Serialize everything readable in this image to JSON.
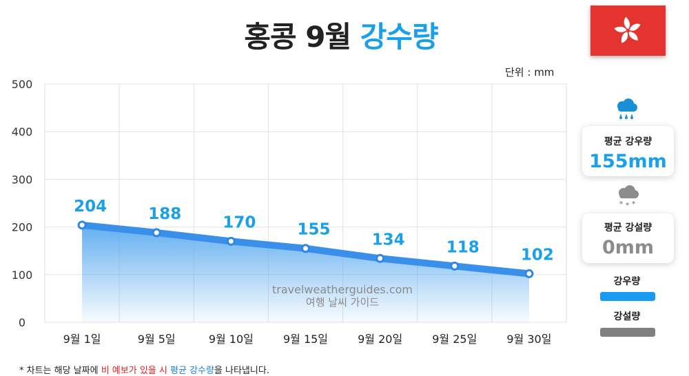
{
  "title": {
    "main": "홍콩 9월",
    "accent": "강수량"
  },
  "unit_label": "단위 : mm",
  "chart_data": {
    "type": "line",
    "title": "홍콩 9월 강수량",
    "categories": [
      "9월 1일",
      "9월 5일",
      "9월 10일",
      "9월 15일",
      "9월 20일",
      "9월 25일",
      "9월 30일"
    ],
    "series": [
      {
        "name": "강우량",
        "values": [
          204,
          188,
          170,
          155,
          134,
          118,
          102
        ]
      }
    ],
    "yticks": [
      "500",
      "400",
      "300",
      "200",
      "100",
      "0"
    ],
    "ylim": [
      0,
      500
    ],
    "xlabel": "",
    "ylabel": "단위 : mm",
    "grid": true,
    "area_fill": true,
    "colors": {
      "line": "#3a8fe8",
      "marker_fill": "#ffffff",
      "label": "#1aa0e8",
      "area": "#5aaaf0"
    }
  },
  "watermark": {
    "line1": "travelweatherguides.com",
    "line2": "여행 날씨 가이드"
  },
  "side": {
    "rain_card": {
      "label": "평균 강우량",
      "value": "155mm",
      "icon": "rain-cloud-icon",
      "color": "#1aa0e8"
    },
    "snow_card": {
      "label": "평균 강설량",
      "value": "0mm",
      "icon": "snow-cloud-icon",
      "color": "#8c8c8c"
    },
    "legend": [
      {
        "label": "강우량",
        "color": "#1a9af0"
      },
      {
        "label": "강설량",
        "color": "#808080"
      }
    ]
  },
  "flag": {
    "name": "hong-kong-flag-icon",
    "color": "#e3342f"
  },
  "footnote": {
    "prefix": "* 차트는 해당 날짜에 ",
    "red": "비 예보가 있을 시",
    "mid": " ",
    "blue": "평균 강수량",
    "suffix": "을 나타냅니다."
  }
}
